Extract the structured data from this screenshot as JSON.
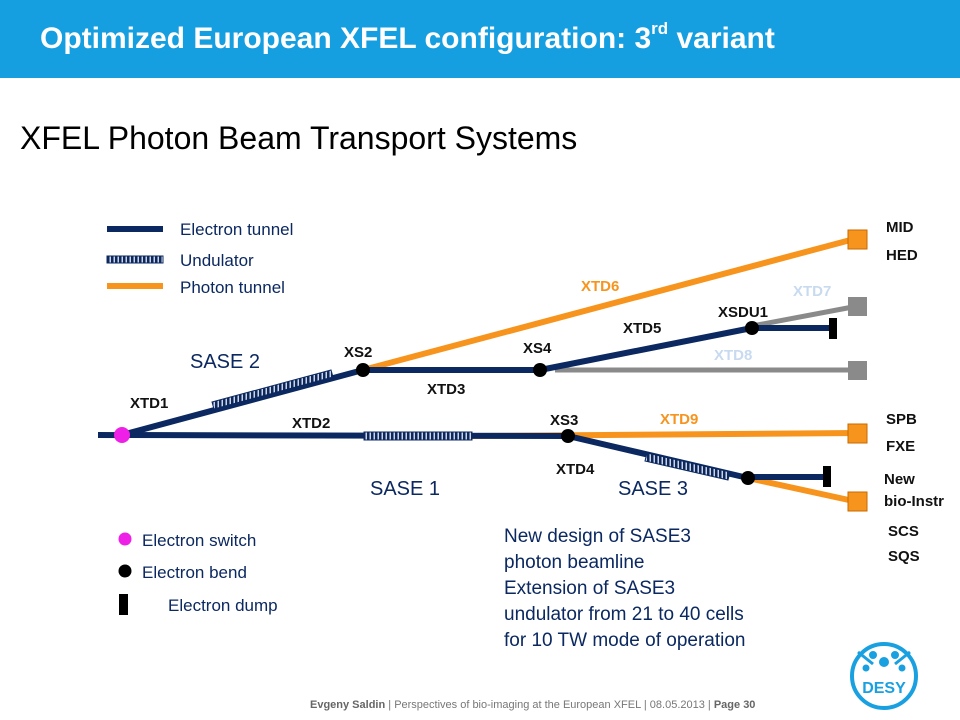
{
  "header": {
    "title": "Optimized European XFEL configuration: 3",
    "title_sup": "rd",
    "title_tail": " variant",
    "background": "#159ee0"
  },
  "subtitle": "XFEL Photon Beam Transport Systems",
  "legend": {
    "electron_tunnel": "Electron tunnel",
    "undulator": "Undulator",
    "photon_tunnel": "Photon tunnel",
    "electron_switch": "Electron switch",
    "electron_bend": "Electron bend",
    "electron_dump": "Electron dump"
  },
  "labels": {
    "xtd1": "XTD1",
    "xtd2": "XTD2",
    "xtd3": "XTD3",
    "xtd4": "XTD4",
    "xtd5": "XTD5",
    "xtd6": "XTD6",
    "xtd7": "XTD7",
    "xtd8": "XTD8",
    "xtd9": "XTD9",
    "xs2": "XS2",
    "xs3": "XS3",
    "xs4": "XS4",
    "xsdu1": "XSDU1",
    "sase1": "SASE 1",
    "sase2": "SASE 2",
    "sase3": "SASE 3"
  },
  "stations": {
    "mid": "MID",
    "hed": "HED",
    "spb": "SPB",
    "fxe": "FXE",
    "new": "New",
    "bio": "bio-Instr",
    "scs": "SCS",
    "sqs": "SQS"
  },
  "note": [
    "New design of SASE3",
    "photon beamline",
    "Extension of SASE3",
    "undulator from 21 to 40 cells",
    "for 10 TW mode of operation"
  ],
  "footer": {
    "author": "Evgeny Saldin",
    "sep1": " | ",
    "talk": "Perspectives of bio-imaging at the European XFEL",
    "sep2": " | ",
    "date": "08.05.2013",
    "sep3": " | ",
    "page": "Page 30"
  },
  "logo": {
    "text": "DESY",
    "color": "#19a0e0"
  },
  "colors": {
    "electron": "#0b2860",
    "photon": "#f7941d",
    "photon_gray": "#8a8a8a",
    "switch": "#ee1fe6",
    "label_light": "#c8daf0"
  },
  "icons": {
    "station": "orange-square-icon",
    "gray_station": "gray-square-icon",
    "switch": "magenta-dot-icon",
    "bend": "black-dot-icon",
    "dump": "black-bar-icon"
  }
}
